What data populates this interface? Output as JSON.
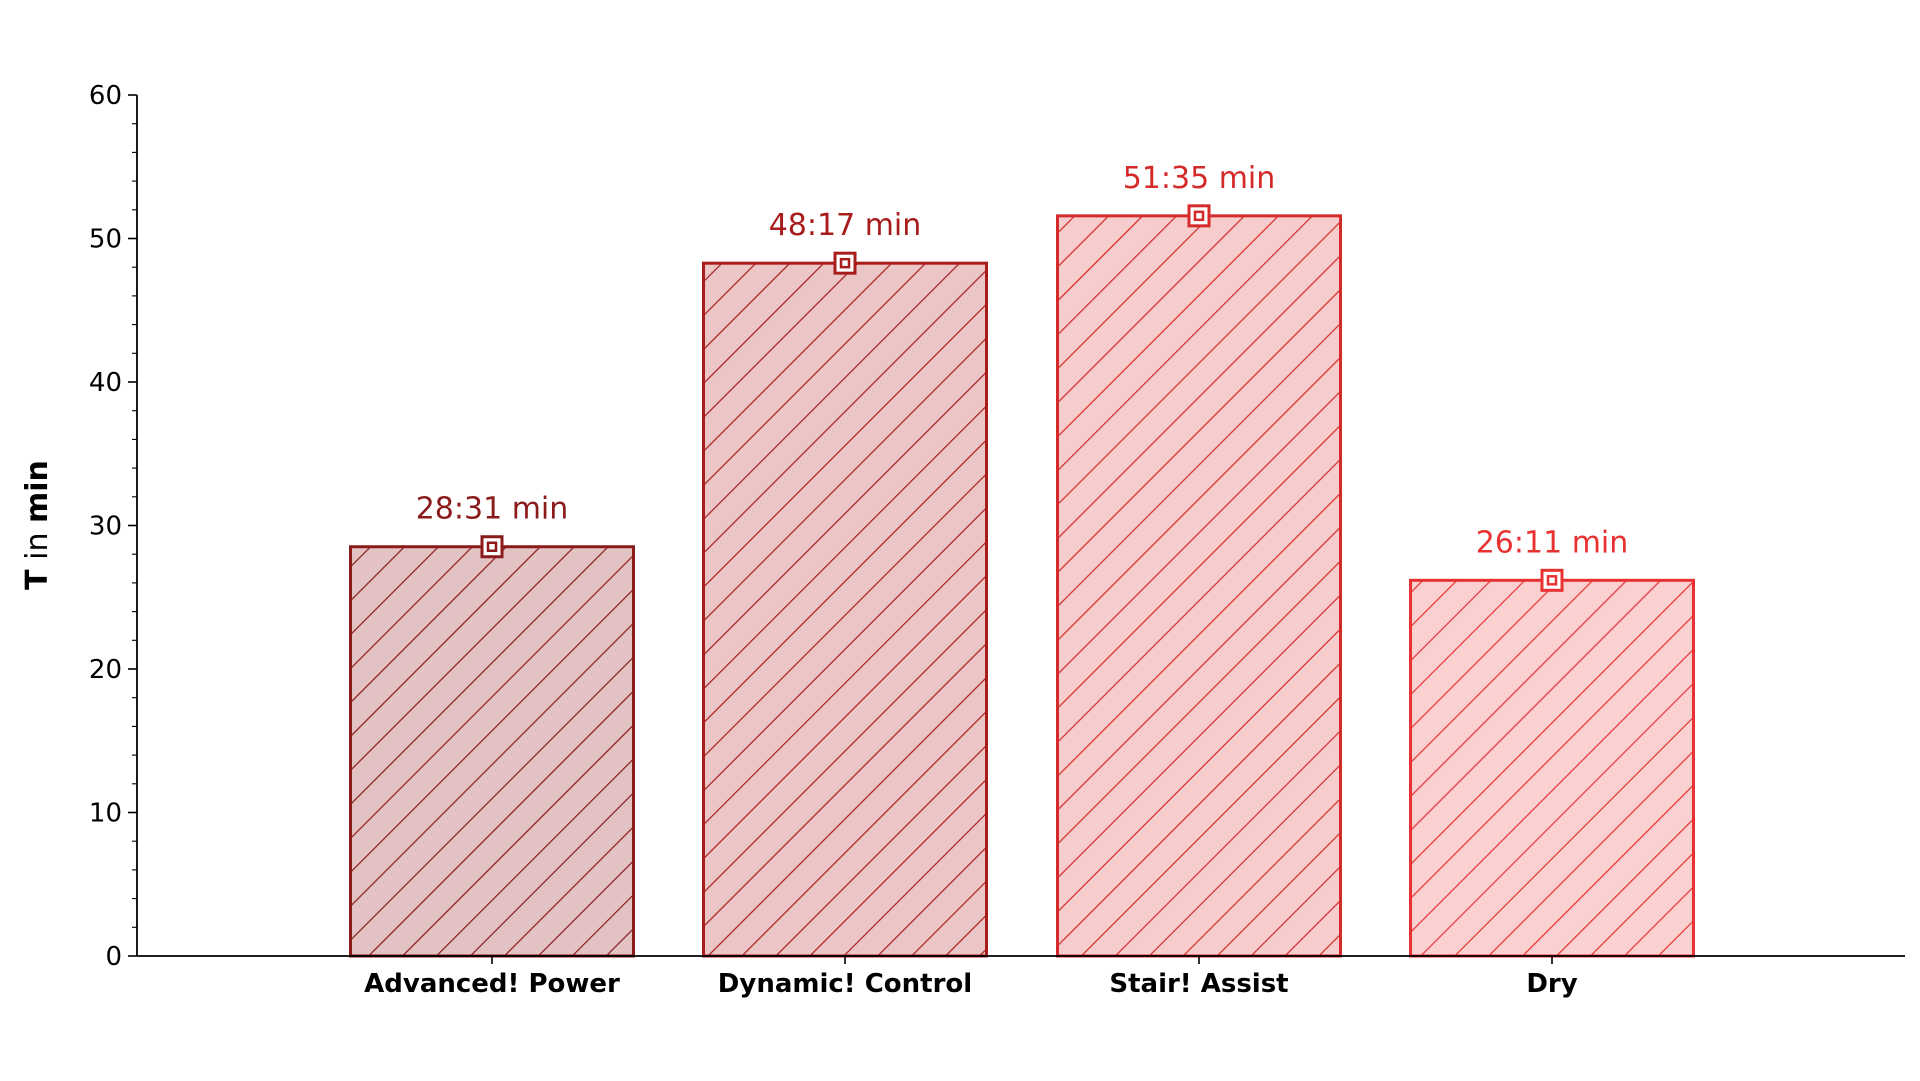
{
  "chart_data": {
    "type": "bar",
    "title": "",
    "xlabel": "",
    "ylabel": {
      "var": "T",
      "mid": " in ",
      "unit": "min"
    },
    "ylim": [
      0,
      60
    ],
    "yticks": [
      0,
      10,
      20,
      30,
      40,
      50,
      60
    ],
    "grid": false,
    "categories": [
      "Advanced! Power",
      "Dynamic! Control",
      "Stair! Assist",
      "Dry"
    ],
    "values": [
      28.52,
      48.28,
      51.58,
      26.18
    ],
    "labels": [
      "28:31 min",
      "48:17 min",
      "51:35 min",
      "26:11 min"
    ],
    "colors": {
      "edge": [
        "#8b1a1a",
        "#a81c1c",
        "#d42a2a",
        "#e83232"
      ],
      "fill": [
        "#e2c2c2",
        "#ecc6c6",
        "#f6cccc",
        "#fad0d0"
      ]
    },
    "bar_style": "hatched",
    "marker": "square-in-square"
  }
}
